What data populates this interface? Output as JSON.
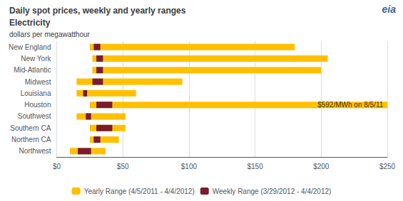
{
  "chart_data": {
    "type": "range_bar",
    "orientation": "horizontal",
    "title": "Daily spot prices, weekly and yearly ranges",
    "subtitle": "Electricity",
    "xlabel": "dollars per megawatthour",
    "categories": [
      "New England",
      "New York",
      "Mid-Atlantic",
      "Midwest",
      "Louisiana",
      "Houston",
      "Southwest",
      "Southern CA",
      "Northern CA",
      "Northwest"
    ],
    "series": [
      {
        "name": "Yearly Range",
        "period": "(4/5/2011 - 4/4/2012)",
        "color": "#FFC000",
        "low": [
          25,
          27,
          27,
          15,
          15,
          25,
          15,
          25,
          25,
          10
        ],
        "high": [
          180,
          205,
          200,
          95,
          60,
          250,
          52,
          52,
          47,
          37
        ]
      },
      {
        "name": "Weekly Range",
        "period": "(3/29/2012 - 4/4/2012)",
        "color": "#7B1C2E",
        "low": [
          28,
          30,
          30,
          27,
          20,
          30,
          22,
          30,
          28,
          16
        ],
        "high": [
          33,
          35,
          35,
          35,
          23,
          42,
          26,
          42,
          33,
          26
        ]
      }
    ],
    "xlim": [
      0,
      250
    ],
    "xticks": [
      {
        "value": 0,
        "label": "$0"
      },
      {
        "value": 50,
        "label": "$50"
      },
      {
        "value": 100,
        "label": "$100"
      },
      {
        "value": 150,
        "label": "$150"
      },
      {
        "value": 200,
        "label": "$200"
      },
      {
        "value": 250,
        "label": "$250"
      }
    ],
    "grid": true,
    "legend": "bottom",
    "annotations": [
      {
        "text": "$592/MWh on 8/5/11",
        "category": "Houston",
        "x": 248
      },
      {
        "text": "eia"
      }
    ]
  }
}
